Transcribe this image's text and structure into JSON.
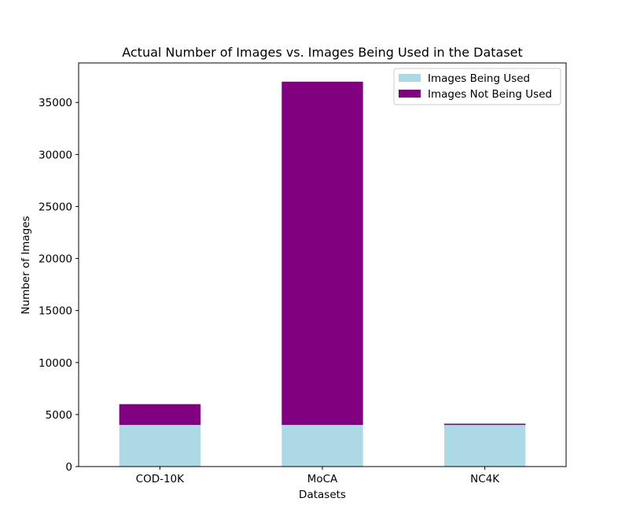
{
  "chart_data": {
    "type": "bar",
    "stacked": true,
    "title": "Actual Number of Images vs. Images Being Used in the Dataset",
    "xlabel": "Datasets",
    "ylabel": "Number of Images",
    "categories": [
      "COD-10K",
      "MoCA",
      "NC4K"
    ],
    "series": [
      {
        "name": "Images Being Used",
        "color": "#add8e6",
        "values": [
          4000,
          4000,
          4000
        ]
      },
      {
        "name": "Images Not Being Used",
        "color": "#800080",
        "values": [
          2000,
          33000,
          121
        ]
      }
    ],
    "ylim": [
      0,
      38800
    ],
    "yticks": [
      0,
      5000,
      10000,
      15000,
      20000,
      25000,
      30000,
      35000
    ],
    "grid": false,
    "legend_position": "top-right"
  }
}
